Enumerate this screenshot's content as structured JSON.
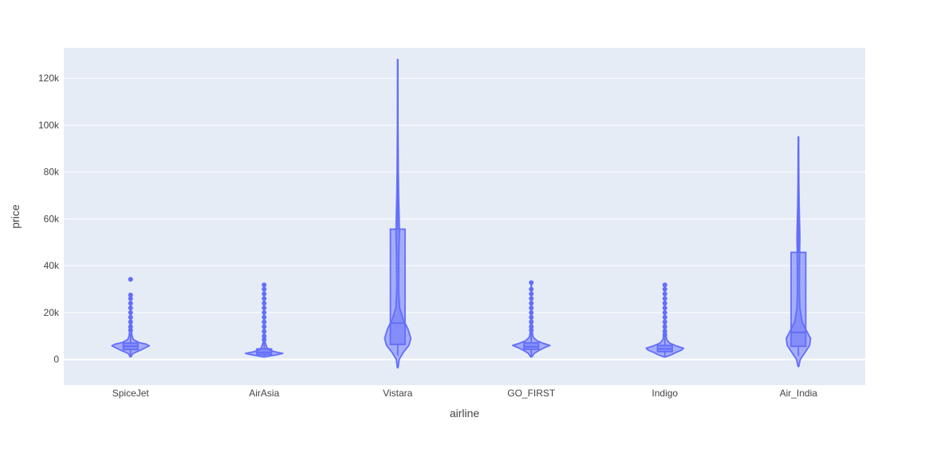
{
  "chart_data": {
    "type": "violin",
    "title": "",
    "xlabel": "airline",
    "ylabel": "price",
    "ylim": [
      -11000,
      133000
    ],
    "yticks": [
      0,
      20000,
      40000,
      60000,
      80000,
      100000,
      120000
    ],
    "ytick_labels": [
      "0",
      "20k",
      "40k",
      "60k",
      "80k",
      "100k",
      "120k"
    ],
    "categories": [
      "SpiceJet",
      "AirAsia",
      "Vistara",
      "GO_FIRST",
      "Indigo",
      "Air_India"
    ],
    "box": true,
    "points": "outliers",
    "colors": {
      "plot_bg": "#e5ecf6",
      "grid": "#ffffff",
      "violin_line": "#636efa",
      "violin_fill": "rgba(99,110,250,0.5)"
    },
    "series": [
      {
        "category": "SpiceJet",
        "min": 1100,
        "q1": 4200,
        "median": 5650,
        "q3": 7000,
        "whisker_high": 11000,
        "max": 34200,
        "density": [
          [
            1100,
            0.02
          ],
          [
            2500,
            0.12
          ],
          [
            4000,
            0.55
          ],
          [
            5000,
            0.8
          ],
          [
            5800,
            1.0
          ],
          [
            6500,
            0.85
          ],
          [
            7200,
            0.45
          ],
          [
            8500,
            0.15
          ],
          [
            10000,
            0.08
          ],
          [
            13000,
            0.04
          ],
          [
            20000,
            0.02
          ],
          [
            28000,
            0.01
          ]
        ],
        "outliers": [
          34200,
          27500,
          26000,
          24000,
          22000,
          20000,
          18000,
          16000,
          14000,
          12500
        ]
      },
      {
        "category": "AirAsia",
        "min": 1100,
        "q1": 2100,
        "median": 3000,
        "q3": 4500,
        "whisker_high": 7500,
        "max": 31800,
        "density": [
          [
            1100,
            0.05
          ],
          [
            2000,
            0.7
          ],
          [
            2600,
            1.0
          ],
          [
            3200,
            0.6
          ],
          [
            4000,
            0.3
          ],
          [
            5000,
            0.15
          ],
          [
            7000,
            0.06
          ],
          [
            10000,
            0.03
          ],
          [
            20000,
            0.015
          ],
          [
            30000,
            0.01
          ]
        ],
        "outliers": [
          31800,
          30000,
          28000,
          26000,
          24000,
          22000,
          20000,
          18000,
          16000,
          14000,
          12000,
          10000,
          8500
        ]
      },
      {
        "category": "Vistara",
        "min": 1700,
        "q1": 6400,
        "median": 15500,
        "q3": 55600,
        "whisker_high": 80000,
        "max": 128000,
        "density": [
          [
            -3500,
            0.02
          ],
          [
            0,
            0.08
          ],
          [
            3000,
            0.3
          ],
          [
            6000,
            0.6
          ],
          [
            9000,
            0.7
          ],
          [
            13000,
            0.55
          ],
          [
            17000,
            0.3
          ],
          [
            22000,
            0.1
          ],
          [
            30000,
            0.05
          ],
          [
            45000,
            0.06
          ],
          [
            55000,
            0.09
          ],
          [
            60000,
            0.08
          ],
          [
            70000,
            0.05
          ],
          [
            80000,
            0.03
          ],
          [
            100000,
            0.015
          ],
          [
            128000,
            0.01
          ]
        ],
        "outliers": []
      },
      {
        "category": "GO_FIRST",
        "min": 1100,
        "q1": 4300,
        "median": 5400,
        "q3": 7100,
        "whisker_high": 11500,
        "max": 32800,
        "density": [
          [
            1100,
            0.03
          ],
          [
            2500,
            0.15
          ],
          [
            4000,
            0.45
          ],
          [
            5000,
            0.7
          ],
          [
            6000,
            1.0
          ],
          [
            7000,
            0.6
          ],
          [
            8000,
            0.3
          ],
          [
            9500,
            0.1
          ],
          [
            12000,
            0.05
          ],
          [
            20000,
            0.02
          ],
          [
            32000,
            0.01
          ]
        ],
        "outliers": [
          32800,
          30000,
          28000,
          26000,
          24000,
          22000,
          20000,
          18000,
          16000,
          14000,
          12500
        ]
      },
      {
        "category": "Indigo",
        "min": 1100,
        "q1": 3300,
        "median": 4500,
        "q3": 6000,
        "whisker_high": 9500,
        "max": 31800,
        "density": [
          [
            1100,
            0.05
          ],
          [
            2000,
            0.35
          ],
          [
            3000,
            0.6
          ],
          [
            4000,
            0.9
          ],
          [
            4800,
            1.0
          ],
          [
            5800,
            0.6
          ],
          [
            7000,
            0.25
          ],
          [
            8500,
            0.1
          ],
          [
            11000,
            0.05
          ],
          [
            20000,
            0.02
          ],
          [
            31000,
            0.01
          ]
        ],
        "outliers": [
          31800,
          30000,
          28000,
          26000,
          24000,
          22000,
          20000,
          18000,
          16000,
          14000,
          12000,
          10500
        ]
      },
      {
        "category": "Air_India",
        "min": 1500,
        "q1": 5600,
        "median": 11500,
        "q3": 45700,
        "whisker_high": 75000,
        "max": 95000,
        "density": [
          [
            -3000,
            0.02
          ],
          [
            0,
            0.1
          ],
          [
            3000,
            0.35
          ],
          [
            6000,
            0.6
          ],
          [
            9000,
            0.65
          ],
          [
            12000,
            0.45
          ],
          [
            16000,
            0.2
          ],
          [
            22000,
            0.08
          ],
          [
            30000,
            0.05
          ],
          [
            45000,
            0.06
          ],
          [
            52000,
            0.08
          ],
          [
            58000,
            0.06
          ],
          [
            65000,
            0.04
          ],
          [
            75000,
            0.025
          ],
          [
            95000,
            0.01
          ]
        ],
        "outliers": []
      }
    ]
  }
}
